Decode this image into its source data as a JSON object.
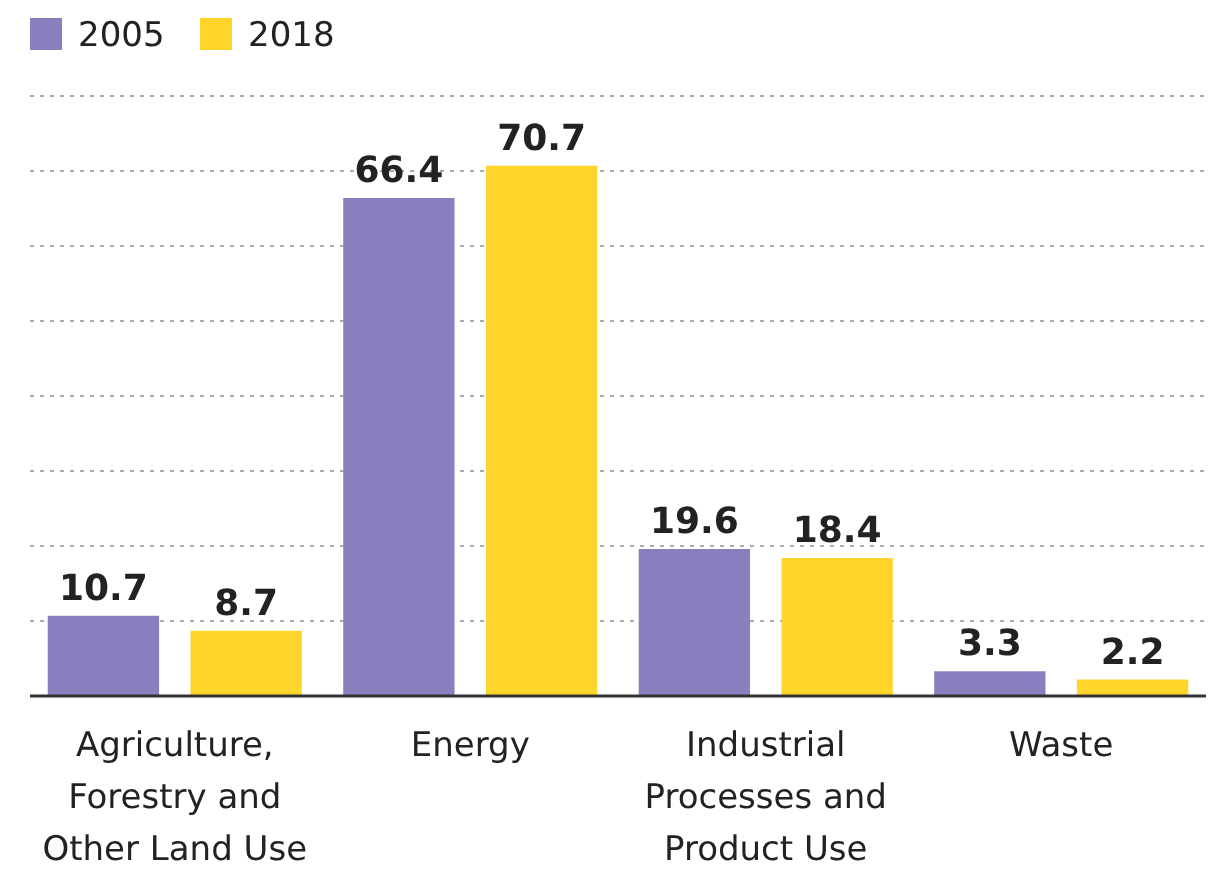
{
  "chart_data": {
    "type": "bar",
    "categories": [
      "Agriculture, Forestry and Other Land Use",
      "Energy",
      "Industrial Processes and Product Use",
      "Waste"
    ],
    "series": [
      {
        "name": "2005",
        "color": "#8a80c0",
        "values": [
          10.7,
          66.4,
          19.6,
          3.3
        ]
      },
      {
        "name": "2018",
        "color": "#ffd52b",
        "values": [
          8.7,
          70.7,
          18.4,
          2.2
        ]
      }
    ],
    "ylim": [
      0,
      80
    ],
    "yticks": [
      {
        "value": 0,
        "label": null
      },
      {
        "value": 10,
        "label": null
      },
      {
        "value": 20,
        "label": null
      },
      {
        "value": 30,
        "label": null
      },
      {
        "value": 40,
        "label": null
      },
      {
        "value": 50,
        "label": null
      },
      {
        "value": 60,
        "label": null
      },
      {
        "value": 70,
        "label": null
      },
      {
        "value": 80,
        "label": null
      }
    ],
    "grid": "y",
    "tick_labels": "x",
    "data_labels": true,
    "legend": "top left"
  }
}
